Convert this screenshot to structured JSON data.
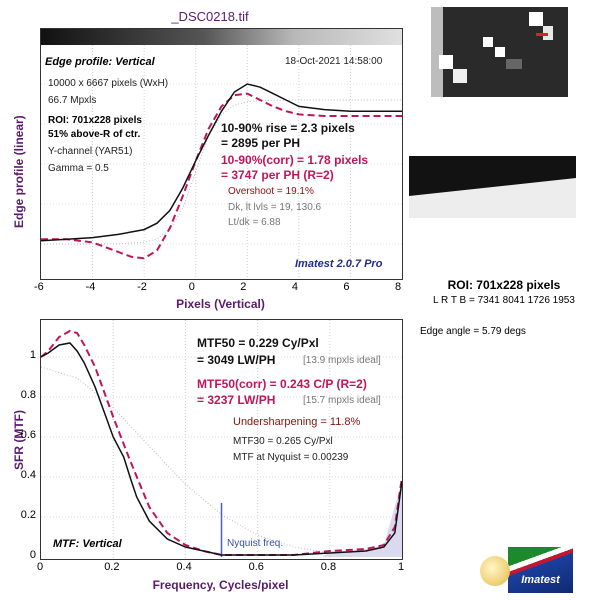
{
  "title": "_DSC0218.tif",
  "colors": {
    "measured": "#111111",
    "corrected": "#c0155a",
    "accent": "#5a1a6e",
    "nyquist": "#4a5cc8"
  },
  "edge_panel": {
    "label": "Edge profile: Vertical",
    "timestamp": "18-Oct-2021 14:58:00",
    "size": "10000 x 6667 pixels (WxH)",
    "mpxls": "66.7 Mpxls",
    "roi": "ROI: 701x228 pixels",
    "pos": "51% above-R of ctr.",
    "channel": "Y-channel  (YAR51)",
    "gamma": "Gamma = 0.5",
    "rise1": "10-90% rise = 2.3 pixels",
    "rise2": "= 2895 per PH",
    "corr1": "10-90%(corr) = 1.78 pixels",
    "corr2": "= 3747 per PH  (R=2)",
    "overshoot": "Overshoot = 19.1%",
    "dk": "Dk, lt lvls = 19, 130.6",
    "ltdk": "Lt/dk = 6.88",
    "version": "Imatest 2.0.7 Pro",
    "ylabel": "Edge profile (linear)",
    "xlabel": "Pixels (Vertical)",
    "xticks": [
      "-6",
      "-4",
      "-2",
      "0",
      "2",
      "4",
      "6",
      "8"
    ]
  },
  "mtf_panel": {
    "mtf50a": "MTF50 = 0.229 Cy/Pxl",
    "mtf50b": "= 3049 LW/PH",
    "ideal1": "[13.9 mpxls ideal]",
    "corr_a": "MTF50(corr) = 0.243 C/P  (R=2)",
    "corr_b": "= 3237 LW/PH",
    "ideal2": "[15.7 mpxls ideal]",
    "undersharp": "Undersharpening = 11.8%",
    "mtf30": "MTF30 = 0.265 Cy/Pxl",
    "nyq_mtf": "MTF at Nyquist = 0.00239",
    "label": "MTF: Vertical",
    "nyq_label": "Nyquist freq.",
    "ylabel": "SFR (MTF)",
    "xlabel": "Frequency, Cycles/pixel",
    "xticks": [
      "0",
      "0.2",
      "0.4",
      "0.6",
      "0.8",
      "1"
    ],
    "yticks": [
      "0",
      "0.2",
      "0.4",
      "0.6",
      "0.8",
      "1"
    ]
  },
  "side": {
    "roi": "ROI: 701x228 pixels",
    "lrtb": "L R  T B = 7341 8041  1726 1953",
    "angle": "Edge angle = 5.79 degs",
    "logo": "Imatest"
  },
  "chart_data": [
    {
      "type": "line",
      "title": "Edge profile: Vertical",
      "xlabel": "Pixels (Vertical)",
      "ylabel": "Edge profile (linear)",
      "xlim": [
        -6,
        8
      ],
      "series": [
        {
          "x": [
            -6,
            -5,
            -4,
            -3,
            -2,
            -1.5,
            -1,
            -0.5,
            0,
            0.5,
            1,
            1.5,
            2,
            2.5,
            3,
            3.5,
            4,
            5,
            6,
            7,
            8
          ],
          "y": [
            0.02,
            0.03,
            0.04,
            0.06,
            0.09,
            0.13,
            0.21,
            0.35,
            0.52,
            0.68,
            0.83,
            0.95,
            1.0,
            0.98,
            0.94,
            0.9,
            0.86,
            0.84,
            0.83,
            0.83,
            0.83
          ]
        },
        {
          "x": [
            -6,
            -5,
            -4,
            -3,
            -2.5,
            -2,
            -1.5,
            -1,
            -0.5,
            0,
            0.5,
            1,
            1.5,
            2,
            2.5,
            3,
            3.5,
            4,
            5,
            6,
            7,
            8
          ],
          "y": [
            0.03,
            0.03,
            0.01,
            -0.05,
            -0.08,
            -0.09,
            -0.04,
            0.1,
            0.3,
            0.52,
            0.72,
            0.86,
            0.93,
            0.94,
            0.9,
            0.86,
            0.83,
            0.81,
            0.8,
            0.8,
            0.8,
            0.8
          ]
        }
      ]
    },
    {
      "type": "line",
      "title": "MTF: Vertical",
      "xlabel": "Frequency, Cycles/pixel",
      "ylabel": "SFR (MTF)",
      "xlim": [
        0,
        1
      ],
      "ylim": [
        0,
        1.2
      ],
      "series": [
        {
          "x": [
            0,
            0.02,
            0.05,
            0.08,
            0.1,
            0.12,
            0.15,
            0.18,
            0.2,
            0.229,
            0.25,
            0.265,
            0.3,
            0.35,
            0.4,
            0.45,
            0.5,
            0.6,
            0.7,
            0.8,
            0.9,
            0.95,
            0.98,
            1
          ],
          "y": [
            1.0,
            1.02,
            1.06,
            1.07,
            1.03,
            0.97,
            0.85,
            0.7,
            0.6,
            0.5,
            0.38,
            0.3,
            0.18,
            0.09,
            0.05,
            0.03,
            0.01,
            0.01,
            0.01,
            0.02,
            0.03,
            0.05,
            0.12,
            0.38
          ]
        },
        {
          "x": [
            0,
            0.02,
            0.05,
            0.08,
            0.1,
            0.12,
            0.15,
            0.18,
            0.2,
            0.243,
            0.27,
            0.3,
            0.35,
            0.4,
            0.45,
            0.5,
            0.6,
            0.7,
            0.8,
            0.9,
            0.95,
            0.98,
            1
          ],
          "y": [
            1.0,
            1.03,
            1.1,
            1.13,
            1.12,
            1.06,
            0.95,
            0.8,
            0.7,
            0.5,
            0.38,
            0.25,
            0.12,
            0.06,
            0.03,
            0.01,
            0.01,
            0.01,
            0.03,
            0.04,
            0.06,
            0.15,
            0.4
          ]
        }
      ]
    }
  ]
}
